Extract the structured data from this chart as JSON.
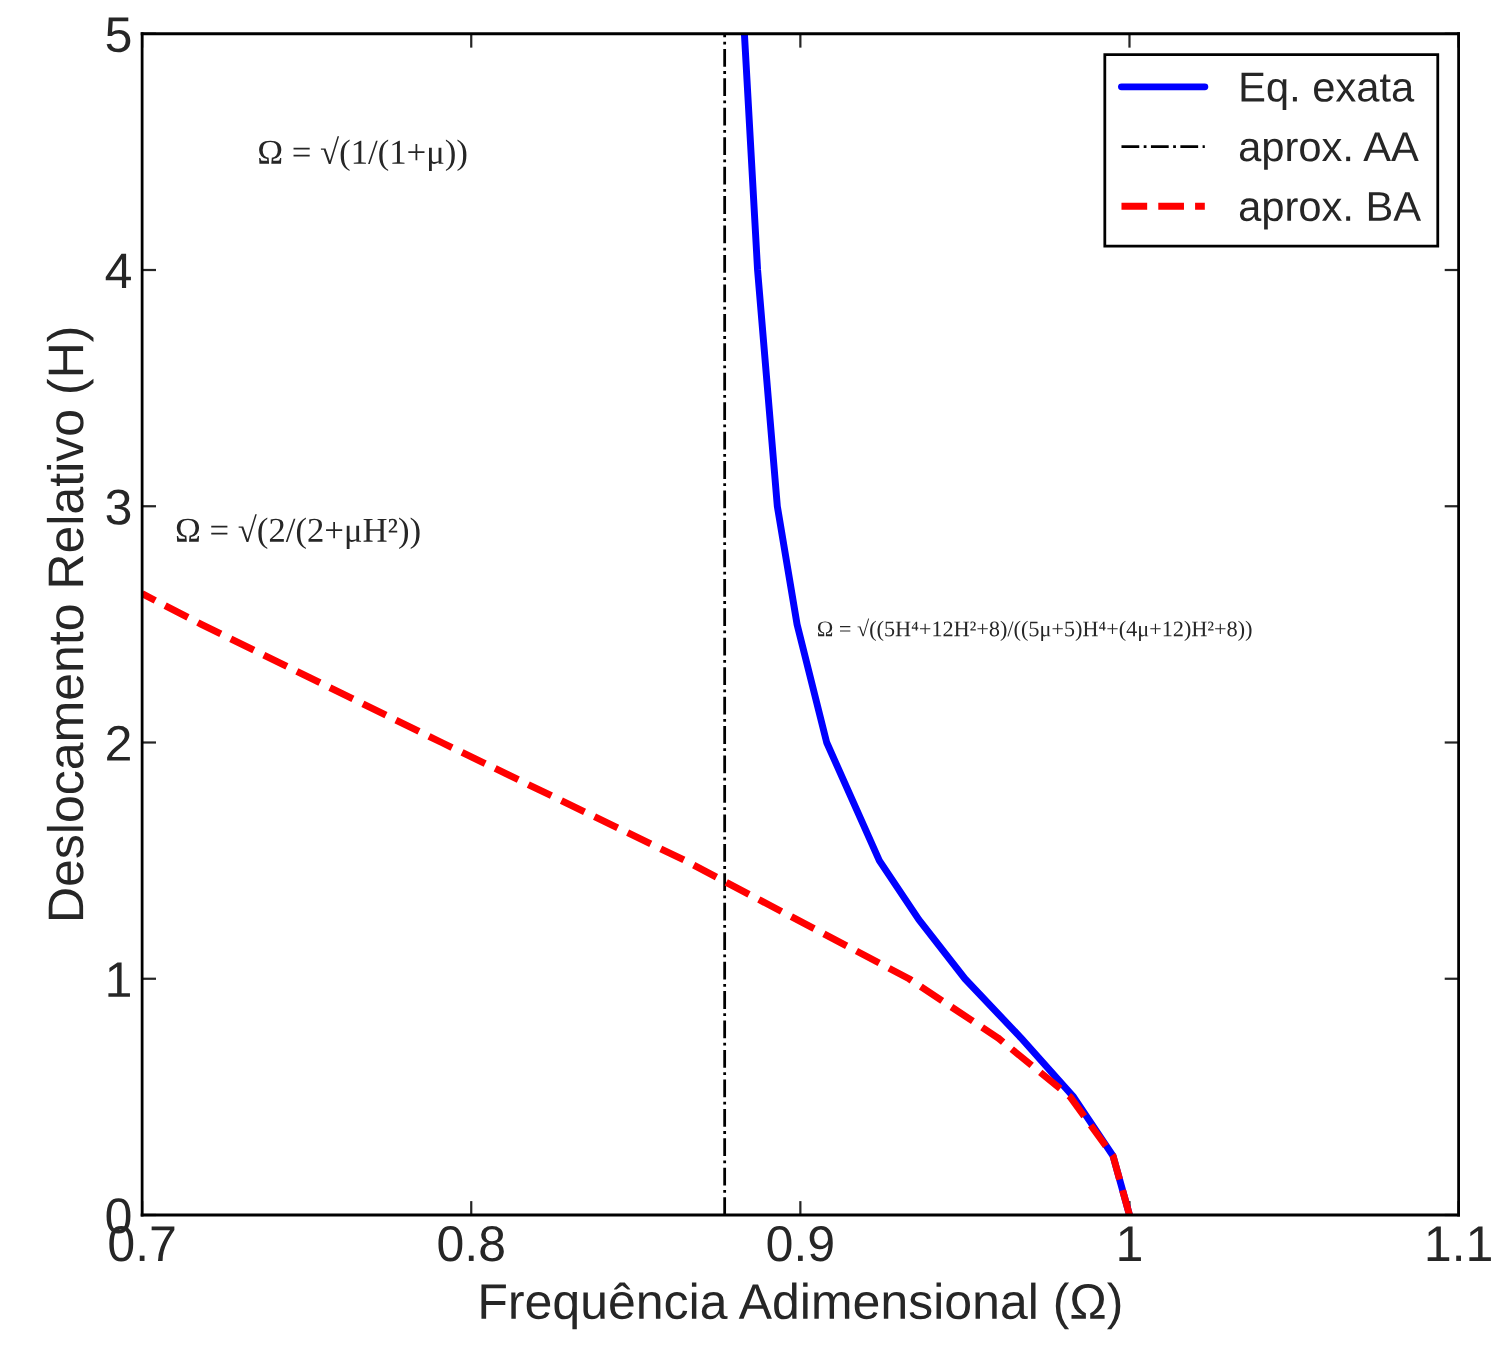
{
  "chart_data": {
    "type": "line",
    "xlabel": "Frequência Adimensional (Ω)",
    "ylabel": "Deslocamento Relativo (H)",
    "xlim": [
      0.7,
      1.1
    ],
    "xticks": [
      0.7,
      0.8,
      0.9,
      1,
      1.1
    ],
    "ylim": [
      0,
      5
    ],
    "yticks": [
      0,
      1,
      2,
      3,
      4,
      5
    ],
    "grid": false,
    "legend": "top right",
    "series": [
      {
        "name": "Eq. exata",
        "color": "#0000ff",
        "line_style": "solid",
        "x": [
          1,
          0.995,
          0.983,
          0.967,
          0.95,
          0.936,
          0.924,
          0.908,
          0.899,
          0.893,
          0.887,
          0.883
        ],
        "values": [
          0,
          0.25,
          0.5,
          0.75,
          1,
          1.25,
          1.5,
          2,
          2.5,
          3,
          4,
          5
        ]
      },
      {
        "name": "aprox. AA",
        "color": "#000000",
        "line_style": "dashdot",
        "x": [
          0.877,
          0.877
        ],
        "values": [
          0,
          5
        ]
      },
      {
        "name": "aprox. BA",
        "color": "#ff0000",
        "line_style": "dashed",
        "x": [
          1,
          0.995,
          0.982,
          0.96,
          0.933,
          0.865,
          0.791,
          0.718,
          0.7
        ],
        "values": [
          0,
          0.25,
          0.5,
          0.75,
          1,
          1.5,
          2,
          2.5,
          2.63
        ]
      }
    ],
    "annotations": [
      "Ω = √(1/(1+μ))",
      "Ω = √(2/(2+μH²))",
      "Ω = √((5H⁴+12H²+8)/((5μ+5)H⁴+(4μ+12)H²+8))"
    ]
  }
}
